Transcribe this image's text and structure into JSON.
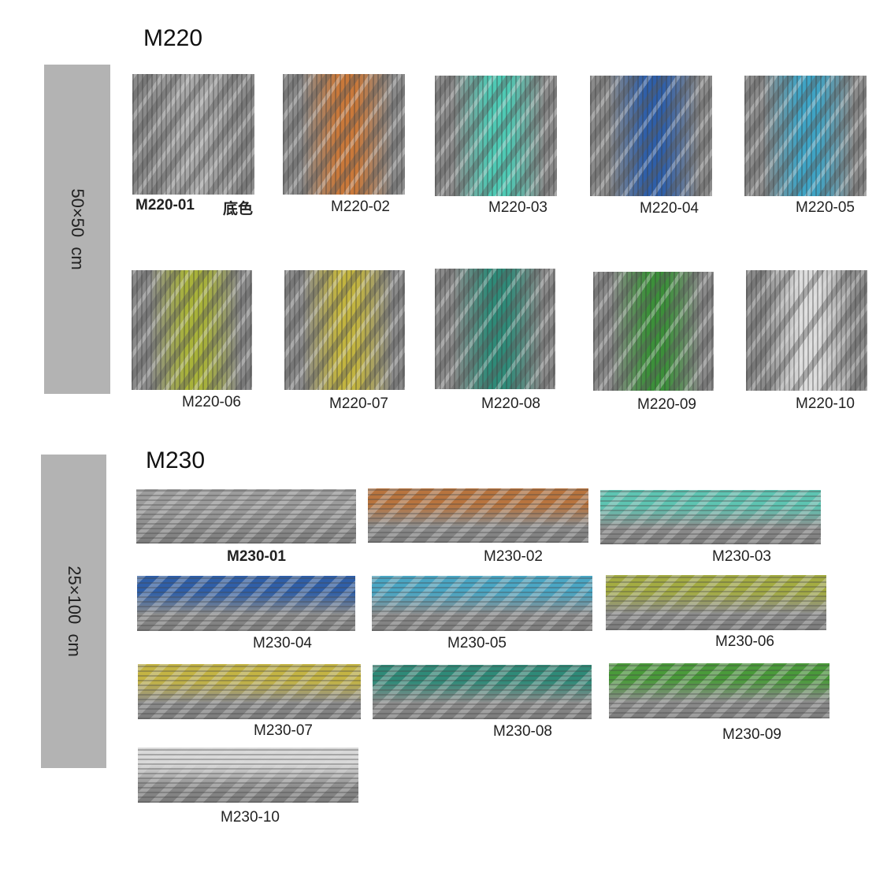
{
  "sections": [
    {
      "title": "M220",
      "size": "50×50  cm",
      "items": [
        {
          "code": "M220-01",
          "note": "底色"
        },
        {
          "code": "M220-02"
        },
        {
          "code": "M220-03"
        },
        {
          "code": "M220-04"
        },
        {
          "code": "M220-05"
        },
        {
          "code": "M220-06"
        },
        {
          "code": "M220-07"
        },
        {
          "code": "M220-08"
        },
        {
          "code": "M220-09"
        },
        {
          "code": "M220-10"
        }
      ]
    },
    {
      "title": "M230",
      "size": "25×100  cm",
      "items": [
        {
          "code": "M230-01"
        },
        {
          "code": "M230-02"
        },
        {
          "code": "M230-03"
        },
        {
          "code": "M230-04"
        },
        {
          "code": "M230-05"
        },
        {
          "code": "M230-06"
        },
        {
          "code": "M230-07"
        },
        {
          "code": "M230-08"
        },
        {
          "code": "M230-09"
        },
        {
          "code": "M230-10"
        }
      ]
    }
  ]
}
